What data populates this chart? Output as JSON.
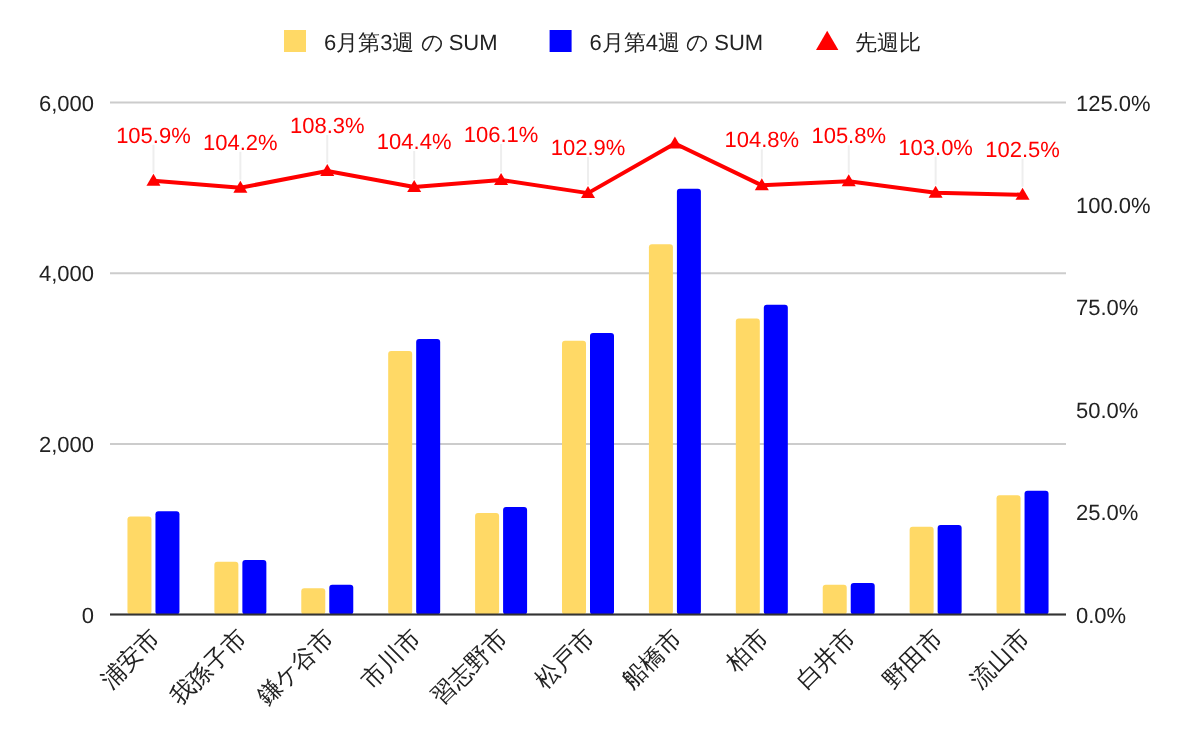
{
  "chart_data": {
    "type": "bar",
    "categories": [
      "浦安市",
      "我孫子市",
      "鎌ケ谷市",
      "市川市",
      "習志野市",
      "松戸市",
      "船橋市",
      "柏市",
      "白井市",
      "野田市",
      "流山市"
    ],
    "series": [
      {
        "name": "6月第3週 の SUM",
        "color": "#ffd966",
        "values": [
          1150,
          620,
          310,
          3090,
          1190,
          3210,
          4340,
          3470,
          350,
          1030,
          1400
        ]
      },
      {
        "name": "6月第4週 の SUM",
        "color": "#0000ff",
        "values": [
          1210,
          640,
          350,
          3230,
          1260,
          3300,
          4990,
          3630,
          370,
          1050,
          1450
        ]
      },
      {
        "name": "先週比",
        "color": "#ff0000",
        "type": "line",
        "axis": "y2",
        "marker": "triangle",
        "values": [
          105.9,
          104.2,
          108.3,
          104.4,
          106.1,
          102.9,
          115,
          104.8,
          105.8,
          103.0,
          102.5
        ],
        "value_labels": [
          "105.9%",
          "104.2%",
          "108.3%",
          "104.4%",
          "106.1%",
          "102.9%",
          null,
          "104.8%",
          "105.8%",
          "103.0%",
          "102.5%"
        ]
      }
    ],
    "ylim": [
      0,
      6000
    ],
    "yticks": [
      0,
      {
        "value": 2000,
        "label": "2,000"
      },
      {
        "value": 4000,
        "label": "4,000"
      },
      {
        "value": 6000,
        "label": "6,000"
      }
    ],
    "y2lim": [
      0,
      125
    ],
    "y2ticks": [
      {
        "value": 0,
        "label": "0.0%"
      },
      {
        "value": 25,
        "label": "25.0%"
      },
      {
        "value": 50,
        "label": "50.0%"
      },
      {
        "value": 75,
        "label": "75.0%"
      },
      {
        "value": 100,
        "label": "100.0%"
      },
      {
        "value": 125,
        "label": "125.0%"
      }
    ],
    "grid": "y",
    "legend": "top"
  }
}
